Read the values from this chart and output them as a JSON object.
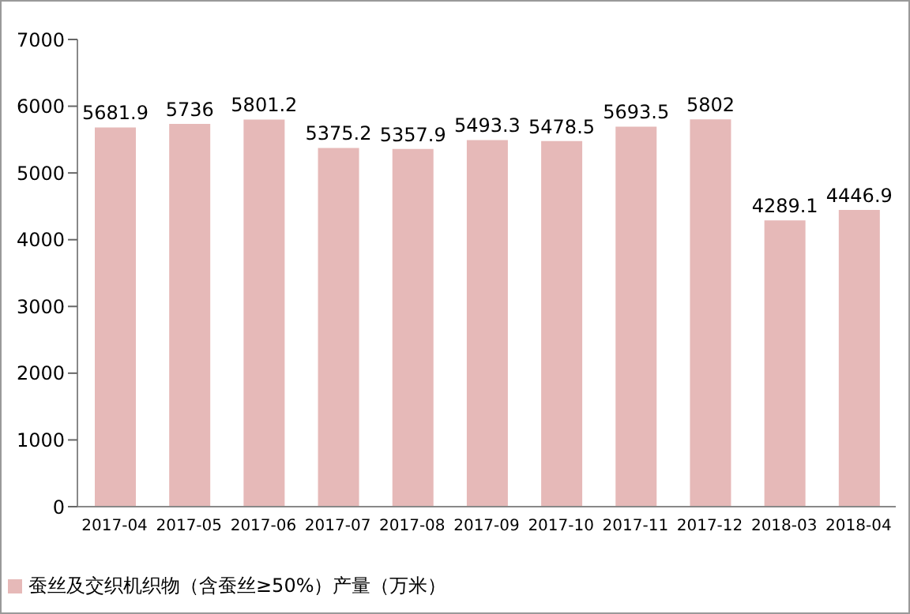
{
  "chart_data": {
    "type": "bar",
    "categories": [
      "2017-04",
      "2017-05",
      "2017-06",
      "2017-07",
      "2017-08",
      "2017-09",
      "2017-10",
      "2017-11",
      "2017-12",
      "2018-03",
      "2018-04"
    ],
    "series": [
      {
        "name": "蚕丝及交织机织物（含蚕丝≥50%）产量（万米）",
        "color": "#e6b9b8",
        "values": [
          5681.9,
          5736,
          5801.2,
          5375.2,
          5357.9,
          5493.3,
          5478.5,
          5693.5,
          5802,
          4289.1,
          4446.9
        ]
      }
    ],
    "ylim": [
      0,
      7000
    ],
    "yticks": [
      0,
      1000,
      2000,
      3000,
      4000,
      5000,
      6000,
      7000
    ],
    "grid": false,
    "legend": "bottom left",
    "data_labels": true
  }
}
